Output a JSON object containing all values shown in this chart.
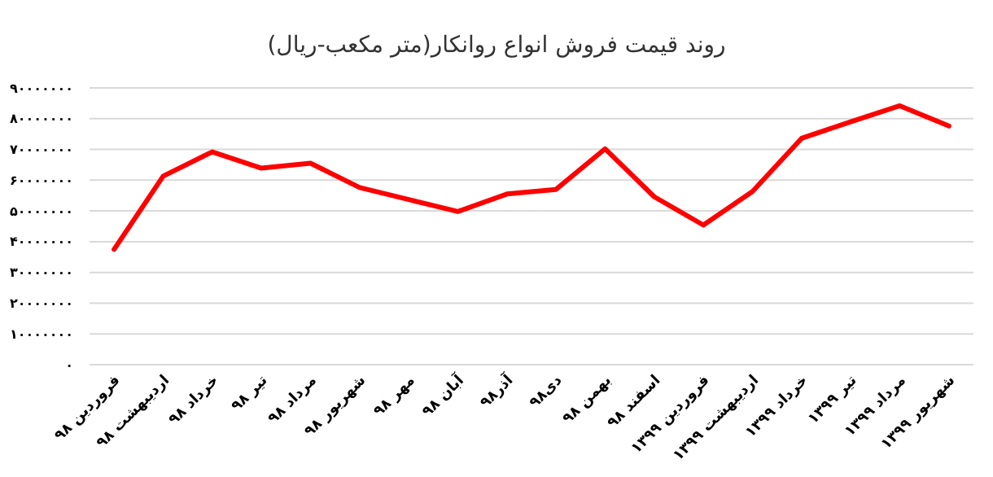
{
  "chart_data": {
    "type": "line",
    "title": "روند قیمت فروش انواع روانکار(متر مکعب-ریال)",
    "categories": [
      "فروردین ۹۸",
      "اردیبهشت ۹۸",
      "خرداد ۹۸",
      "تیر ۹۸",
      "مرداد ۹۸",
      "شهریور ۹۸",
      "مهر ۹۸",
      "آبان ۹۸",
      "آذر۹۸",
      "دی۹۸",
      "بهمن ۹۸",
      "اسفند ۹۸",
      "فروردین ۱۳۹۹",
      "اردیبهشت ۱۳۹۹",
      "خرداد ۱۳۹۹",
      "تیر ۱۳۹۹",
      "مرداد ۱۳۹۹",
      "شهریور ۱۳۹۹"
    ],
    "series": [
      {
        "color": "#ff0000",
        "values": [
          37500000,
          61300000,
          69200000,
          63900000,
          65500000,
          57600000,
          53700000,
          49800000,
          55500000,
          57000000,
          70200000,
          54600000,
          45400000,
          56300000,
          73600000,
          79000000,
          84200000,
          77600000
        ]
      }
    ],
    "ylim": [
      0,
      90000000
    ],
    "yticks": [
      {
        "value": 0,
        "label": "۰"
      },
      {
        "value": 10000000,
        "label": "۱۰۰۰۰۰۰۰"
      },
      {
        "value": 20000000,
        "label": "۲۰۰۰۰۰۰۰"
      },
      {
        "value": 30000000,
        "label": "۳۰۰۰۰۰۰۰"
      },
      {
        "value": 40000000,
        "label": "۴۰۰۰۰۰۰۰"
      },
      {
        "value": 50000000,
        "label": "۵۰۰۰۰۰۰۰"
      },
      {
        "value": 60000000,
        "label": "۶۰۰۰۰۰۰۰"
      },
      {
        "value": 70000000,
        "label": "۷۰۰۰۰۰۰۰"
      },
      {
        "value": 80000000,
        "label": "۸۰۰۰۰۰۰۰"
      },
      {
        "value": 90000000,
        "label": "۹۰۰۰۰۰۰۰"
      }
    ],
    "grid": "y",
    "marker": "none",
    "line_style": "solid"
  }
}
